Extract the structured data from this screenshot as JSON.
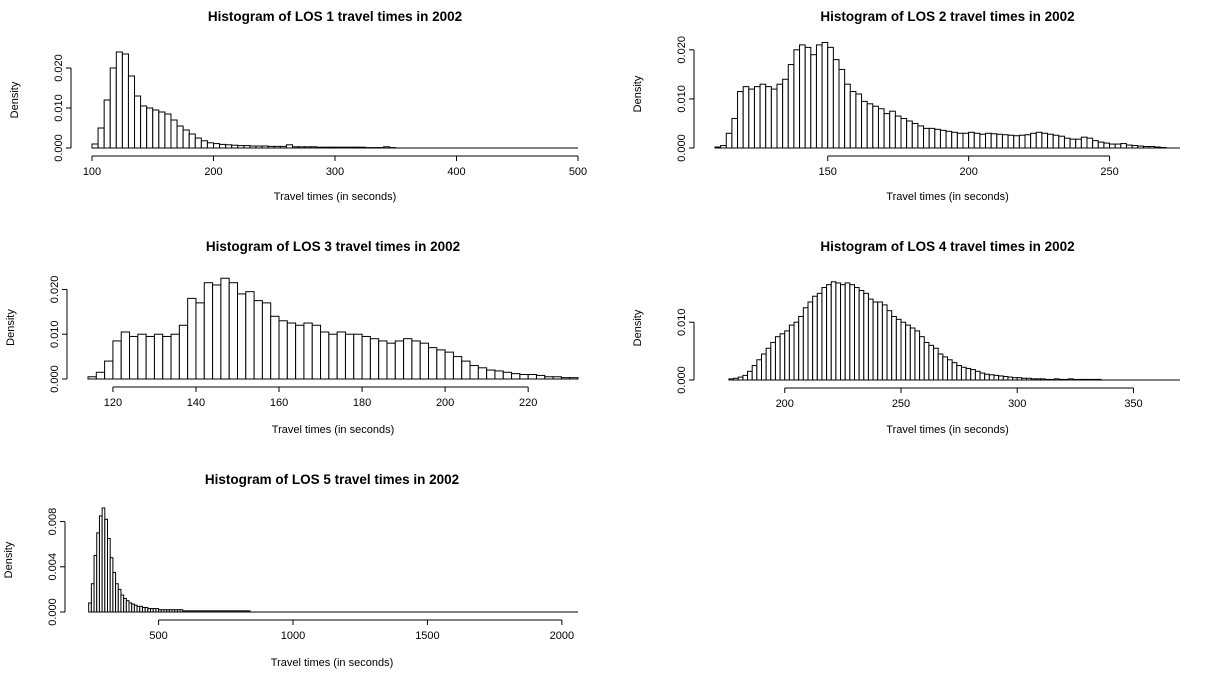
{
  "figure": {
    "background": "#ffffff",
    "bar_fill": "#ffffff",
    "bar_stroke": "#000000"
  },
  "chart_data": [
    {
      "type": "bar",
      "subtype": "histogram",
      "title": "Histogram of LOS 1 travel times in 2002",
      "xlabel": "Travel times (in seconds)",
      "ylabel": "Density",
      "xlim": [
        100,
        500
      ],
      "ylim": [
        0,
        0.024
      ],
      "xticks": [
        100,
        200,
        300,
        400,
        500
      ],
      "yticks": [
        0.0,
        0.01,
        0.02
      ],
      "ytick_labels": [
        "0.000",
        "0.010",
        "0.020"
      ],
      "bin_width": 5,
      "bin_start": 100,
      "values": [
        0.001,
        0.005,
        0.012,
        0.02,
        0.024,
        0.0235,
        0.018,
        0.013,
        0.0105,
        0.01,
        0.0095,
        0.009,
        0.0085,
        0.007,
        0.0055,
        0.0045,
        0.0035,
        0.0025,
        0.0018,
        0.0013,
        0.0011,
        0.0009,
        0.0008,
        0.0007,
        0.0006,
        0.0006,
        0.0005,
        0.0005,
        0.0005,
        0.0004,
        0.0004,
        0.0004,
        0.0008,
        0.0003,
        0.0003,
        0.0003,
        0.0003,
        0.0002,
        0.0002,
        0.0002,
        0.0002,
        0.0002,
        0.0002,
        0.0002,
        0.0002,
        0.0001,
        0.0001,
        0.0001,
        0.0003,
        0.0001
      ]
    },
    {
      "type": "bar",
      "subtype": "histogram",
      "title": "Histogram of LOS 2 travel times in 2002",
      "xlabel": "Travel times (in seconds)",
      "ylabel": "Density",
      "xlim": [
        110,
        275
      ],
      "ylim": [
        0,
        0.022
      ],
      "xticks": [
        150,
        200,
        250
      ],
      "yticks": [
        0.0,
        0.01,
        0.02
      ],
      "ytick_labels": [
        "0.000",
        "0.010",
        "0.020"
      ],
      "bin_width": 2,
      "bin_start": 110,
      "values": [
        0.0002,
        0.0005,
        0.003,
        0.006,
        0.0115,
        0.0125,
        0.012,
        0.0125,
        0.013,
        0.0125,
        0.012,
        0.013,
        0.014,
        0.017,
        0.02,
        0.021,
        0.0205,
        0.019,
        0.021,
        0.0215,
        0.0205,
        0.018,
        0.016,
        0.013,
        0.0115,
        0.011,
        0.0095,
        0.009,
        0.0085,
        0.008,
        0.007,
        0.0075,
        0.0065,
        0.006,
        0.0055,
        0.005,
        0.0045,
        0.004,
        0.004,
        0.0038,
        0.0036,
        0.0034,
        0.0032,
        0.003,
        0.003,
        0.0032,
        0.003,
        0.0028,
        0.003,
        0.0029,
        0.0028,
        0.0027,
        0.0026,
        0.0025,
        0.0026,
        0.0027,
        0.003,
        0.0032,
        0.003,
        0.0028,
        0.0026,
        0.0024,
        0.002,
        0.0018,
        0.0018,
        0.0022,
        0.002,
        0.0015,
        0.0012,
        0.001,
        0.0008,
        0.0008,
        0.0009,
        0.0006,
        0.0005,
        0.0004,
        0.0003,
        0.0003,
        0.0002,
        0.0001
      ]
    },
    {
      "type": "bar",
      "subtype": "histogram",
      "title": "Histogram of LOS 3 travel times in 2002",
      "xlabel": "Travel times (in seconds)",
      "ylabel": "Density",
      "xlim": [
        114,
        232
      ],
      "ylim": [
        0,
        0.023
      ],
      "xticks": [
        120,
        140,
        160,
        180,
        200,
        220
      ],
      "yticks": [
        0.0,
        0.01,
        0.02
      ],
      "ytick_labels": [
        "0.000",
        "0.010",
        "0.020"
      ],
      "bin_width": 2,
      "bin_start": 114,
      "values": [
        0.0005,
        0.0015,
        0.004,
        0.0085,
        0.0105,
        0.0095,
        0.01,
        0.0095,
        0.01,
        0.0095,
        0.01,
        0.012,
        0.018,
        0.017,
        0.0215,
        0.021,
        0.0225,
        0.0215,
        0.019,
        0.0195,
        0.0175,
        0.017,
        0.014,
        0.013,
        0.0125,
        0.012,
        0.0125,
        0.012,
        0.0105,
        0.01,
        0.0105,
        0.01,
        0.01,
        0.0095,
        0.009,
        0.0085,
        0.008,
        0.0085,
        0.009,
        0.0085,
        0.008,
        0.007,
        0.0065,
        0.006,
        0.005,
        0.004,
        0.003,
        0.0025,
        0.002,
        0.0018,
        0.0015,
        0.0012,
        0.001,
        0.001,
        0.0008,
        0.0005,
        0.0005,
        0.0003,
        0.0003
      ]
    },
    {
      "type": "bar",
      "subtype": "histogram",
      "title": "Histogram of LOS 4 travel times in 2002",
      "xlabel": "Travel times (in seconds)",
      "ylabel": "Density",
      "xlim": [
        170,
        370
      ],
      "ylim": [
        0,
        0.018
      ],
      "xticks": [
        200,
        250,
        300,
        350
      ],
      "yticks": [
        0.0,
        0.01
      ],
      "ytick_labels": [
        "0.000",
        "0.010"
      ],
      "bin_width": 2,
      "bin_start": 176,
      "values": [
        0.0002,
        0.0003,
        0.0005,
        0.0008,
        0.0015,
        0.0025,
        0.0035,
        0.0045,
        0.0055,
        0.0065,
        0.0075,
        0.008,
        0.0085,
        0.0095,
        0.01,
        0.011,
        0.0125,
        0.0135,
        0.0145,
        0.015,
        0.016,
        0.0165,
        0.017,
        0.0168,
        0.0165,
        0.0168,
        0.0165,
        0.016,
        0.0155,
        0.015,
        0.014,
        0.0135,
        0.0135,
        0.013,
        0.012,
        0.011,
        0.0105,
        0.01,
        0.0095,
        0.009,
        0.0085,
        0.0075,
        0.0065,
        0.006,
        0.0055,
        0.0045,
        0.004,
        0.0035,
        0.003,
        0.0025,
        0.0022,
        0.002,
        0.0018,
        0.0015,
        0.0012,
        0.001,
        0.0009,
        0.0008,
        0.0007,
        0.0006,
        0.0005,
        0.0004,
        0.0004,
        0.0003,
        0.0003,
        0.0002,
        0.0002,
        0.0002,
        0.0001,
        0.0001,
        0.0002,
        0.0001,
        0.0001,
        0.0002,
        0.0001,
        0.0001,
        0.0001,
        0.0001,
        0.0001,
        0.0001
      ]
    },
    {
      "type": "bar",
      "subtype": "histogram",
      "title": "Histogram of LOS 5 travel times in 2002",
      "xlabel": "Travel times (in seconds)",
      "ylabel": "Density",
      "xlim": [
        230,
        2060
      ],
      "ylim": [
        0,
        0.0092
      ],
      "xticks": [
        500,
        1000,
        1500,
        2000
      ],
      "yticks": [
        0.0,
        0.004,
        0.008
      ],
      "ytick_labels": [
        "0.000",
        "0.004",
        "0.008"
      ],
      "bin_width": 10,
      "bin_start": 240,
      "values": [
        0.0008,
        0.0025,
        0.005,
        0.007,
        0.0085,
        0.0092,
        0.0082,
        0.0065,
        0.0048,
        0.0035,
        0.0025,
        0.002,
        0.0015,
        0.0012,
        0.001,
        0.0008,
        0.0007,
        0.0006,
        0.0005,
        0.0005,
        0.0004,
        0.0004,
        0.0003,
        0.0003,
        0.0003,
        0.0003,
        0.0002,
        0.0002,
        0.0002,
        0.0002,
        0.0002,
        0.0002,
        0.0002,
        0.0002,
        0.0002,
        0.0001,
        0.0001,
        0.0001,
        0.0001,
        0.0001,
        0.0001,
        0.0001,
        0.0001,
        0.0001,
        0.0001,
        0.0001,
        0.0001,
        0.0001,
        0.0001,
        0.0001,
        0.0001,
        0.0001,
        0.0001,
        0.0001,
        0.0001,
        0.0001,
        0.0001,
        0.0001,
        0.0001,
        0.0001
      ]
    }
  ]
}
